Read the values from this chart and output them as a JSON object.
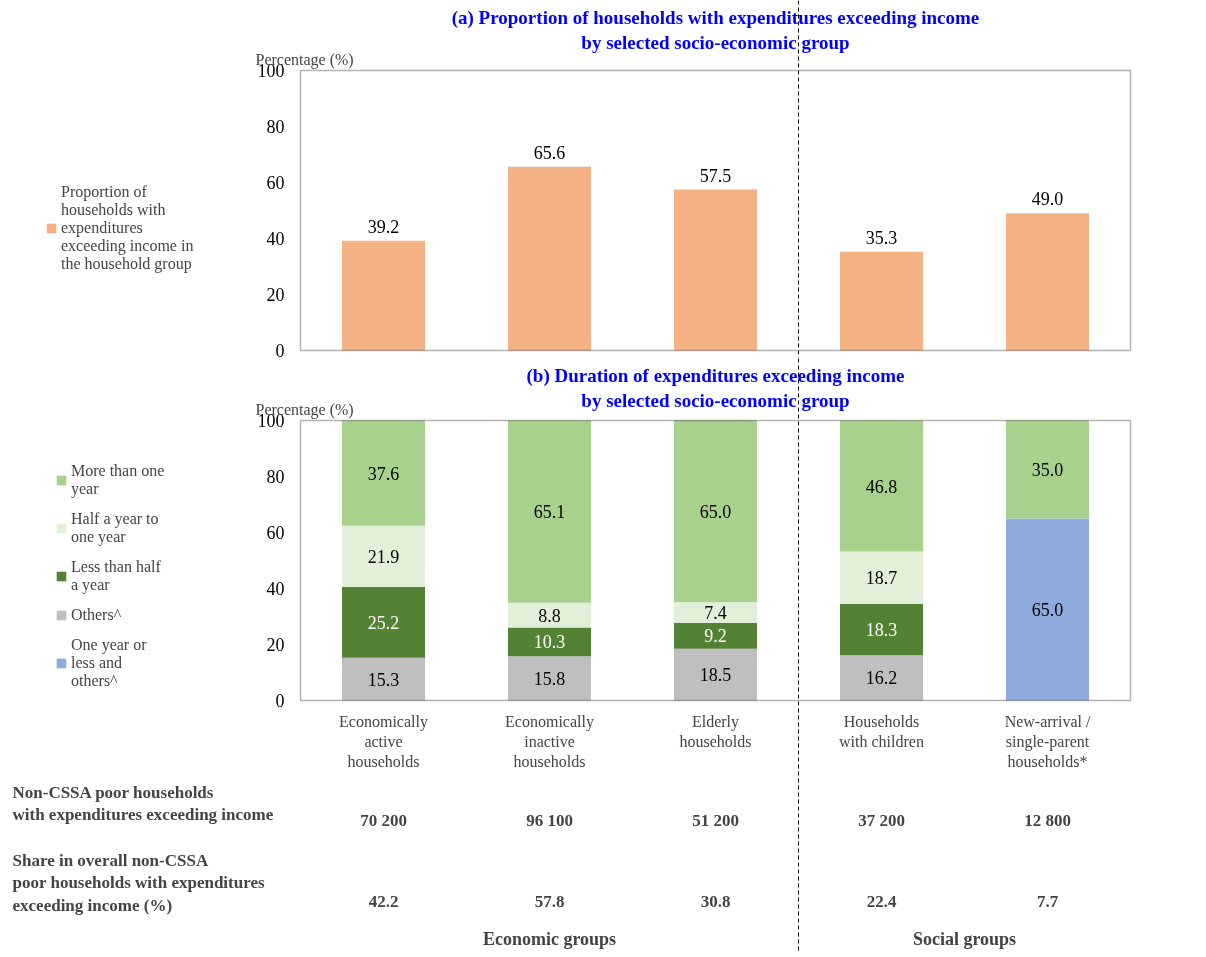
{
  "chart_data": [
    {
      "type": "bar",
      "title": "(a) Proportion of households with expenditures exceeding income\nby selected socio-economic group",
      "ylabel": "Percentage (%)",
      "categories": [
        "Economically active households",
        "Economically inactive households",
        "Elderly households",
        "Households with children",
        "New-arrival / single-parent households*"
      ],
      "series": [
        {
          "name": "Proportion of households with expenditures exceeding income in the household group",
          "color": "#f4b183",
          "values": [
            39.2,
            65.6,
            57.5,
            35.3,
            49.0
          ],
          "value_labels": [
            "39.2",
            "65.6",
            "57.5",
            "35.3",
            "49.0"
          ]
        }
      ],
      "ylim": [
        0,
        100
      ],
      "yticks": [
        0,
        20,
        40,
        60,
        80,
        100
      ],
      "grid": false,
      "legend": "left",
      "tick_labels": "y"
    },
    {
      "type": "bar",
      "stacked": true,
      "title": "(b) Duration of expenditures exceeding income\nby selected socio-economic group",
      "ylabel": "Percentage (%)",
      "categories": [
        "Economically active households",
        "Economically inactive households",
        "Elderly households",
        "Households with children",
        "New-arrival / single-parent households*"
      ],
      "series": [
        {
          "name": "One year or less and others^",
          "color": "#8faadc",
          "values": [
            null,
            null,
            null,
            null,
            65.0
          ],
          "value_labels": [
            null,
            null,
            null,
            null,
            "65.0"
          ]
        },
        {
          "name": "Others^",
          "color": "#bfbfbf",
          "values": [
            15.3,
            15.8,
            18.5,
            16.2,
            null
          ],
          "value_labels": [
            "15.3",
            "15.8",
            "18.5",
            "16.2",
            null
          ]
        },
        {
          "name": "Less than half a year",
          "color": "#548235",
          "values": [
            25.2,
            10.3,
            9.2,
            18.3,
            null
          ],
          "value_labels": [
            "25.2",
            "10.3",
            "9.2",
            "18.3",
            null
          ]
        },
        {
          "name": "Half a year to one year",
          "color": "#e2f0d9",
          "values": [
            21.9,
            8.8,
            7.4,
            18.7,
            null
          ],
          "value_labels": [
            "21.9",
            "8.8",
            "7.4",
            "18.7",
            null
          ]
        },
        {
          "name": "More than one year",
          "color": "#a9d18e",
          "values": [
            37.6,
            65.1,
            65.0,
            46.8,
            35.0
          ],
          "value_labels": [
            "37.6",
            "65.1",
            "65.0",
            "46.8",
            "35.0"
          ]
        }
      ],
      "ylim": [
        0,
        100
      ],
      "yticks": [
        0,
        20,
        40,
        60,
        80,
        100
      ],
      "grid": false,
      "legend": "left",
      "annotations": [
        "Non-CSSA poor households\nwith expenditures exceeding income",
        "70 200",
        "96 100",
        "51 200",
        "37 200",
        "12 800",
        "Share in overall non-CSSA\npoor households with expenditures\nexceeding income  (%)",
        "42.2",
        "57.8",
        "30.8",
        "22.4",
        "7.7",
        "Economic groups",
        "Social groups"
      ]
    }
  ]
}
